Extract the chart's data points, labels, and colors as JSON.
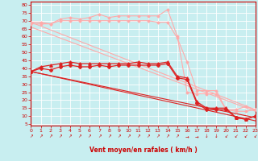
{
  "background_color": "#c8eef0",
  "grid_color": "#ffffff",
  "xlabel": "Vent moyen/en rafales ( km/h )",
  "xlabel_color": "#cc0000",
  "tick_color": "#cc0000",
  "x_ticks": [
    0,
    1,
    2,
    3,
    4,
    5,
    6,
    7,
    8,
    9,
    10,
    11,
    12,
    13,
    14,
    15,
    16,
    17,
    18,
    19,
    20,
    21,
    22,
    23
  ],
  "y_ticks": [
    5,
    10,
    15,
    20,
    25,
    30,
    35,
    40,
    45,
    50,
    55,
    60,
    65,
    70,
    75,
    80
  ],
  "xlim": [
    0,
    23
  ],
  "ylim": [
    4,
    82
  ],
  "arrow_symbols": [
    "↗",
    "↗",
    "↗",
    "↗",
    "↗",
    "↗",
    "↗",
    "↗",
    "↗",
    "↗",
    "↗",
    "↗",
    "↗",
    "↗",
    "↗",
    "↗",
    "→",
    "→",
    "↓",
    "↓",
    "↙",
    "↙",
    "↙",
    "↙"
  ],
  "series": [
    {
      "color": "#ffaaaa",
      "linewidth": 0.8,
      "marker": "D",
      "markersize": 1.5,
      "data_x": [
        0,
        1,
        2,
        3,
        4,
        5,
        6,
        7,
        8,
        9,
        10,
        11,
        12,
        13,
        14,
        15,
        16,
        17,
        18,
        19,
        20,
        21,
        22,
        23
      ],
      "data_y": [
        69,
        69,
        68,
        71,
        72,
        71,
        72,
        74,
        72,
        73,
        73,
        73,
        73,
        73,
        77,
        60,
        25,
        24,
        24,
        24,
        14,
        13,
        13,
        14
      ]
    },
    {
      "color": "#ffaaaa",
      "linewidth": 0.8,
      "marker": "D",
      "markersize": 1.5,
      "data_x": [
        0,
        1,
        2,
        3,
        4,
        5,
        6,
        7,
        8,
        9,
        10,
        11,
        12,
        13,
        14,
        15,
        16,
        17,
        18,
        19,
        20,
        21,
        22,
        23
      ],
      "data_y": [
        68,
        68,
        68,
        70,
        70,
        70,
        70,
        70,
        70,
        70,
        70,
        70,
        70,
        69,
        69,
        59,
        44,
        26,
        26,
        26,
        14,
        14,
        16,
        14
      ]
    },
    {
      "color": "#dd2222",
      "linewidth": 0.9,
      "marker": "^",
      "markersize": 2.5,
      "data_x": [
        0,
        1,
        2,
        3,
        4,
        5,
        6,
        7,
        8,
        9,
        10,
        11,
        12,
        13,
        14,
        15,
        16,
        17,
        18,
        19,
        20,
        21,
        22,
        23
      ],
      "data_y": [
        38,
        41,
        42,
        43,
        44,
        43,
        43,
        43,
        43,
        43,
        43,
        44,
        43,
        43,
        44,
        35,
        34,
        19,
        15,
        15,
        15,
        9,
        8,
        10
      ]
    },
    {
      "color": "#dd2222",
      "linewidth": 0.9,
      "marker": "P",
      "markersize": 2.5,
      "data_x": [
        0,
        1,
        2,
        3,
        4,
        5,
        6,
        7,
        8,
        9,
        10,
        11,
        12,
        13,
        14,
        15,
        16,
        17,
        18,
        19,
        20,
        21,
        22,
        23
      ],
      "data_y": [
        38,
        40,
        39,
        41,
        42,
        41,
        41,
        42,
        41,
        42,
        42,
        42,
        42,
        42,
        43,
        34,
        33,
        18,
        14,
        14,
        14,
        9,
        8,
        10
      ]
    },
    {
      "color": "#dd2222",
      "linewidth": 0.8,
      "marker": null,
      "markersize": 0,
      "data_x": [
        0,
        23
      ],
      "data_y": [
        38,
        9
      ]
    },
    {
      "color": "#dd2222",
      "linewidth": 0.8,
      "marker": null,
      "markersize": 0,
      "data_x": [
        0,
        23
      ],
      "data_y": [
        38,
        7
      ]
    },
    {
      "color": "#ffaaaa",
      "linewidth": 0.8,
      "marker": null,
      "markersize": 0,
      "data_x": [
        0,
        23
      ],
      "data_y": [
        69,
        14
      ]
    },
    {
      "color": "#ffaaaa",
      "linewidth": 0.8,
      "marker": null,
      "markersize": 0,
      "data_x": [
        0,
        23
      ],
      "data_y": [
        66,
        13
      ]
    }
  ]
}
